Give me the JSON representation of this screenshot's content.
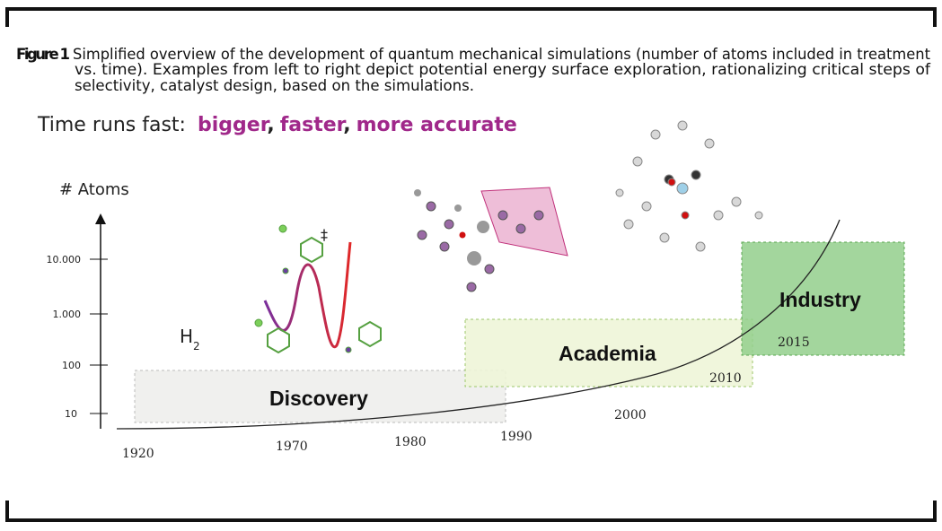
{
  "caption": {
    "label": "Figure 1",
    "lines": [
      "Simplified overview of the development of quantum mechanical simulations (number of atoms included in treatment",
      "vs. time). Examples from left to right depict potential energy surface exploration, rationalizing critical steps of",
      "selectivity, catalyst design, based on the simulations."
    ]
  },
  "tagline": {
    "lead": "Time runs fast:",
    "words": [
      "bigger",
      "faster",
      "more accurate"
    ],
    "separator": ","
  },
  "axis": {
    "label": "# Atoms",
    "ticks": [
      "10.000",
      "1.000",
      "100",
      "10"
    ]
  },
  "years": [
    "1920",
    "1970",
    "1980",
    "1990",
    "2000",
    "2010",
    "2015"
  ],
  "eras": [
    {
      "label": "Discovery"
    },
    {
      "label": "Academia"
    },
    {
      "label": "Industry"
    }
  ],
  "molecules": {
    "h2": {
      "symbol": "H",
      "subscript": "2"
    },
    "transition_mark": "‡"
  }
}
